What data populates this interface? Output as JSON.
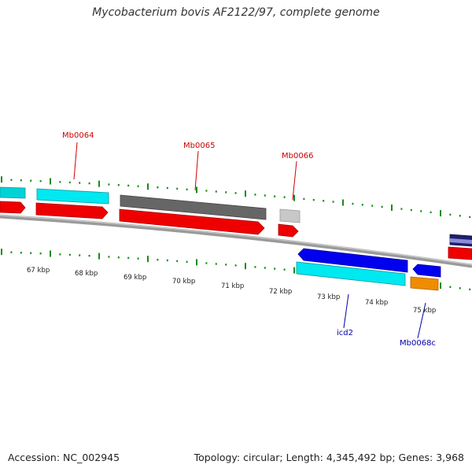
{
  "title": "Mycobacterium bovis AF2122/97, complete genome",
  "footer": {
    "accession": "Accession: NC_002945",
    "stats": "Topology: circular; Length: 4,345,492 bp; Genes: 3,968"
  },
  "colors": {
    "forward_cds": "#ee0000",
    "reverse_cds": "#0000ee",
    "cyan_feature": "#00e8f0",
    "dark_feature": "#606060",
    "light_feature": "#c8c8c8",
    "orange_feature": "#f08c00",
    "tick": "#1a8a1a",
    "backbone": "#8a8a8a",
    "forward_label": "#cc0000",
    "reverse_label": "#0000aa"
  },
  "scale_labels": [
    "67 kbp",
    "68 kbp",
    "69 kbp",
    "70 kbp",
    "71 kbp",
    "72 kbp",
    "73 kbp",
    "74 kbp",
    "75 kbp"
  ],
  "gene_labels": {
    "forward": [
      "Mb0064",
      "Mb0065",
      "Mb0066"
    ],
    "reverse": [
      "icd2",
      "Mb0068c"
    ]
  }
}
